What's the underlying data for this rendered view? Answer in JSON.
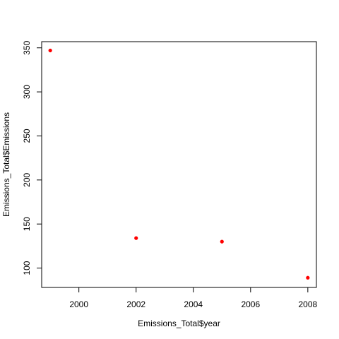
{
  "chart_data": {
    "type": "scatter",
    "title": "",
    "xlabel": "Emissions_Total$year",
    "ylabel": "Emissions_Total$Emissions",
    "xlim": [
      1998.7,
      2008.3
    ],
    "ylim": [
      78,
      357
    ],
    "x_ticks": [
      2000,
      2002,
      2004,
      2006,
      2008
    ],
    "y_ticks": [
      100,
      150,
      200,
      250,
      300,
      350
    ],
    "grid": false,
    "legend": "none",
    "point_color": "#ff0000",
    "points": [
      {
        "x": 1999,
        "y": 347
      },
      {
        "x": 2002,
        "y": 134
      },
      {
        "x": 2005,
        "y": 130
      },
      {
        "x": 2008,
        "y": 89
      }
    ]
  }
}
